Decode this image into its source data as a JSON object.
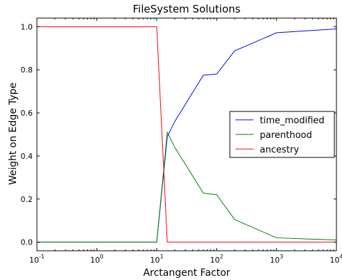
{
  "chart_data": {
    "type": "line",
    "title": "FileSystem Solutions",
    "xlabel": "Arctangent Factor",
    "ylabel": "Weight on Edge Type",
    "x_scale": "log",
    "xlim": [
      0.1,
      10000
    ],
    "ylim": [
      -0.04,
      1.04
    ],
    "x_ticks": [
      {
        "value": 0.1,
        "base": "10",
        "exp": "-1"
      },
      {
        "value": 1,
        "base": "10",
        "exp": "0"
      },
      {
        "value": 10,
        "base": "10",
        "exp": "1"
      },
      {
        "value": 100,
        "base": "10",
        "exp": "2"
      },
      {
        "value": 1000,
        "base": "10",
        "exp": "3"
      },
      {
        "value": 10000,
        "base": "10",
        "exp": "4"
      }
    ],
    "y_ticks": [
      {
        "value": 0.0,
        "label": "0.0"
      },
      {
        "value": 0.2,
        "label": "0.2"
      },
      {
        "value": 0.4,
        "label": "0.4"
      },
      {
        "value": 0.6,
        "label": "0.6"
      },
      {
        "value": 0.8,
        "label": "0.8"
      },
      {
        "value": 1.0,
        "label": "1.0"
      }
    ],
    "grid": false,
    "legend_position": "center-right",
    "series": [
      {
        "name": "time_modified",
        "color": "#0000ff",
        "x": [
          0.1,
          10,
          15,
          20,
          60,
          100,
          200,
          1000,
          10000
        ],
        "y": [
          0.0,
          0.0,
          0.49,
          0.56,
          0.775,
          0.78,
          0.888,
          0.972,
          0.99
        ]
      },
      {
        "name": "parenthood",
        "color": "#008000",
        "x": [
          0.1,
          10,
          15,
          20,
          60,
          100,
          200,
          1000,
          3000,
          10000
        ],
        "y": [
          0.0,
          0.0,
          0.51,
          0.44,
          0.228,
          0.22,
          0.105,
          0.02,
          0.015,
          0.01
        ]
      },
      {
        "name": "ancestry",
        "color": "#ff0000",
        "x": [
          0.1,
          10,
          15,
          10000
        ],
        "y": [
          1.0,
          1.0,
          0.0,
          0.0
        ]
      }
    ]
  }
}
